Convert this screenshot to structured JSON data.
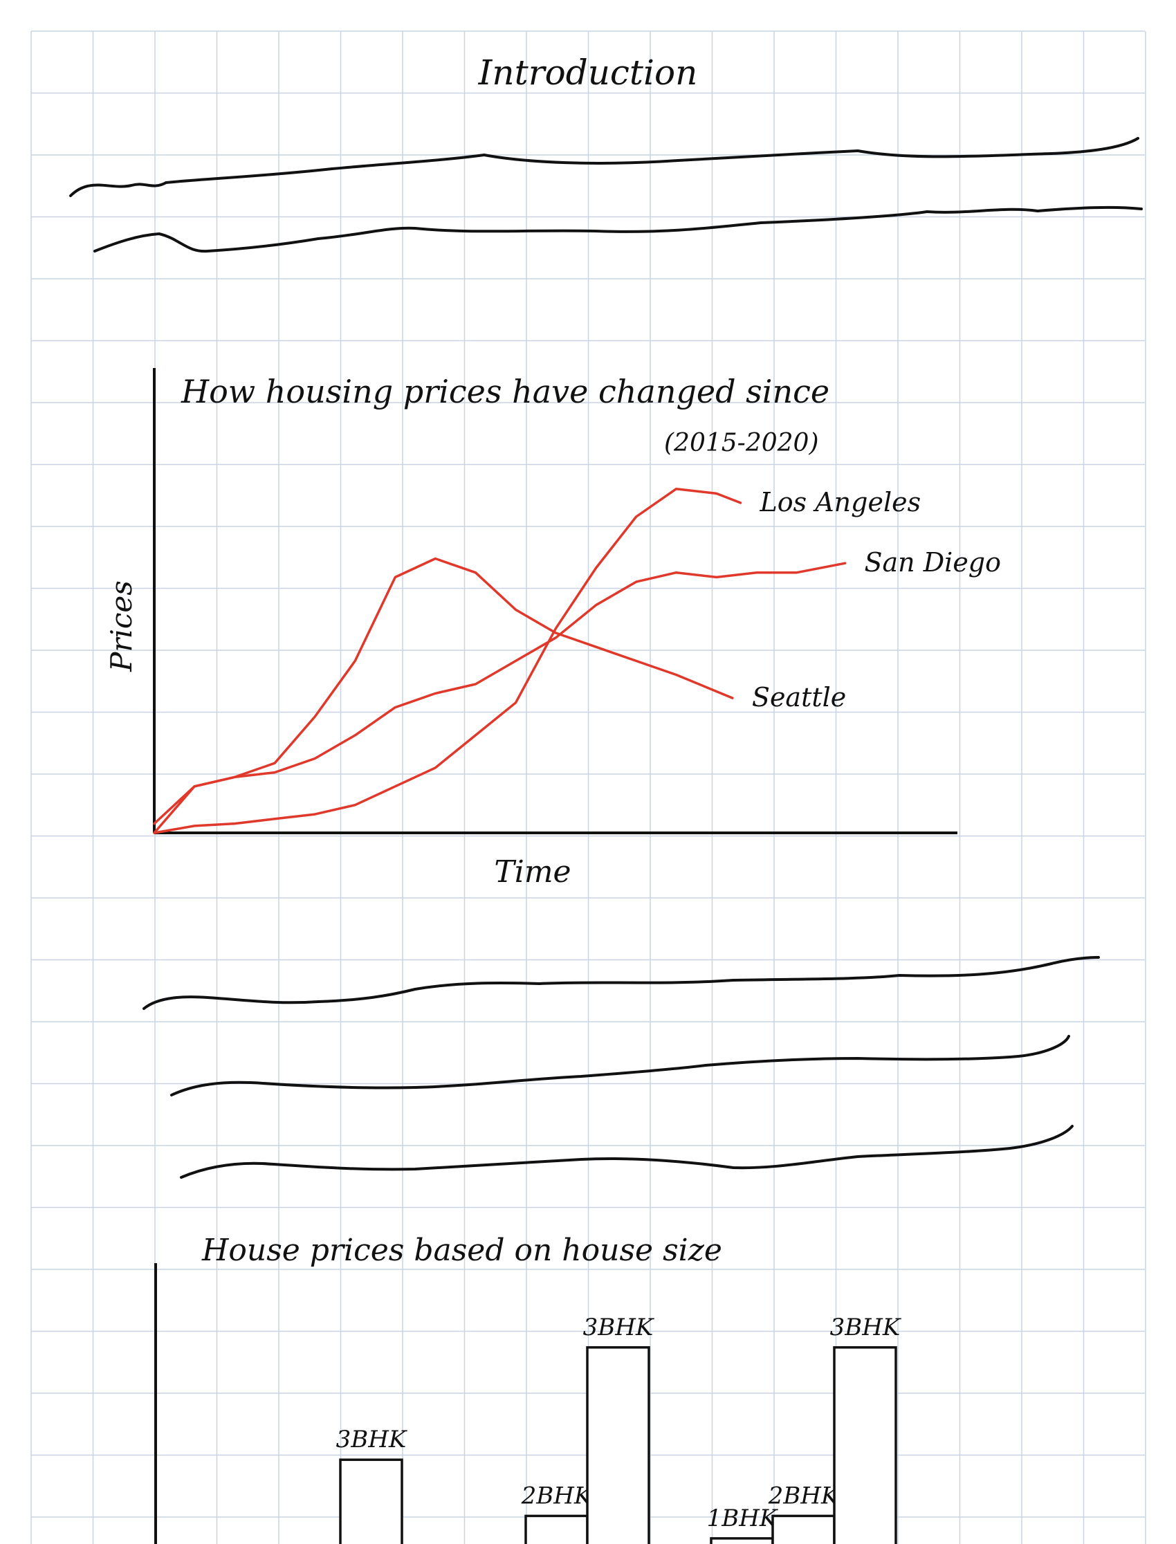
{
  "page": {
    "heading": "Introduction"
  },
  "chart_data": [
    {
      "type": "line",
      "title": "How housing prices have changed since",
      "subtitle": "(2015-2020)",
      "xlabel": "Time",
      "ylabel": "Prices",
      "grid": true,
      "legend": "labels at line ends",
      "ylim": [
        0,
        100
      ],
      "series": [
        {
          "name": "Los Angeles",
          "color": "#e0392b",
          "x": [
            0,
            0.05,
            0.1,
            0.15,
            0.2,
            0.25,
            0.3,
            0.35,
            0.4,
            0.45,
            0.5,
            0.55,
            0.6,
            0.65,
            0.7,
            0.73
          ],
          "values": [
            0,
            1.5,
            2,
            3,
            4,
            6,
            10,
            14,
            21,
            28,
            44,
            57,
            68,
            74,
            73,
            71
          ]
        },
        {
          "name": "San Diego",
          "color": "#e0392b",
          "x": [
            0,
            0.05,
            0.1,
            0.15,
            0.2,
            0.25,
            0.3,
            0.35,
            0.4,
            0.45,
            0.5,
            0.55,
            0.6,
            0.65,
            0.7,
            0.75,
            0.8,
            0.86
          ],
          "values": [
            2,
            10,
            12,
            13,
            16,
            21,
            27,
            30,
            32,
            37,
            42,
            49,
            54,
            56,
            55,
            56,
            56,
            58
          ]
        },
        {
          "name": "Seattle",
          "color": "#e0392b",
          "x": [
            0,
            0.05,
            0.1,
            0.15,
            0.2,
            0.25,
            0.3,
            0.35,
            0.4,
            0.45,
            0.5,
            0.55,
            0.6,
            0.65,
            0.72
          ],
          "values": [
            0,
            10,
            12,
            15,
            25,
            37,
            55,
            59,
            56,
            48,
            43,
            40,
            37,
            34,
            29
          ]
        }
      ]
    },
    {
      "type": "bar",
      "title": "House prices based on house size",
      "ylabel": "",
      "grid": true,
      "ylim": [
        0,
        100
      ],
      "bars": [
        {
          "label": "3BHK",
          "value": 30
        },
        {
          "label": "2BHK",
          "value": 10
        },
        {
          "label": "3BHK",
          "value": 70
        },
        {
          "label": "1BHK",
          "value": 2
        },
        {
          "label": "2BHK",
          "value": 10
        },
        {
          "label": "3BHK",
          "value": 70
        }
      ]
    }
  ]
}
